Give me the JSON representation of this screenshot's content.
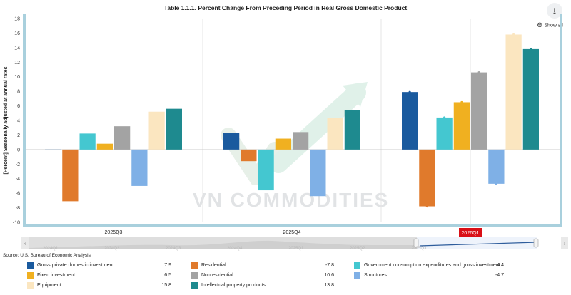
{
  "header": {
    "title": "Table 1.1.1. Percent Change From Preceding Period in Real Gross Domestic Product",
    "show_all_label": "Show all",
    "download_icon": "download-icon"
  },
  "watermark": {
    "text": "VN COMMODITIES"
  },
  "source": "Source: U.S. Bureau of Economic Analysis",
  "navigator": {
    "labels": [
      "2024Q1",
      "2024Q2",
      "2024Q3",
      "2024Q4",
      "2025Q1",
      "2025Q2",
      "2025Q3"
    ],
    "selected_label": "2026Q1"
  },
  "colors": {
    "gross_private": "#1a5a9e",
    "residential": "#e07a2c",
    "gov": "#44c7d0",
    "fixed": "#f0b020",
    "nonresidential": "#a3a3a3",
    "structures": "#7fb0e6",
    "equipment": "#fbe6c0",
    "ipp": "#1e8a8f",
    "axis_bar": "#a9d0dd",
    "selected": "#d90f16"
  },
  "chart_data": {
    "type": "bar",
    "title": "Table 1.1.1. Percent Change From Preceding Period in Real Gross Domestic Product",
    "ylabel": "[Percent] Seasonally adjusted at annual rates",
    "xlabel": "",
    "ylim": [
      -10,
      18
    ],
    "yticks": [
      -10,
      -8,
      -6,
      -4,
      -2,
      0,
      2,
      4,
      6,
      8,
      10,
      12,
      14,
      16,
      18
    ],
    "grid": false,
    "categories": [
      "2025Q3",
      "2025Q4",
      "2026Q1"
    ],
    "series": [
      {
        "name": "Gross private domestic investment",
        "values": [
          0.0,
          2.3,
          7.9
        ]
      },
      {
        "name": "Residential",
        "values": [
          -7.1,
          -1.6,
          -7.8
        ]
      },
      {
        "name": "Government consumption expenditures and gross investment",
        "values": [
          2.2,
          -5.6,
          4.4
        ]
      },
      {
        "name": "Fixed investment",
        "values": [
          0.8,
          1.5,
          6.5
        ]
      },
      {
        "name": "Nonresidential",
        "values": [
          3.2,
          2.4,
          10.6
        ]
      },
      {
        "name": "Structures",
        "values": [
          -5.0,
          -6.4,
          -4.7
        ]
      },
      {
        "name": "Equipment",
        "values": [
          5.2,
          4.3,
          15.8
        ]
      },
      {
        "name": "Intellectual property products",
        "values": [
          5.6,
          5.4,
          13.8
        ]
      }
    ],
    "legend": [
      {
        "name": "Gross private domestic investment",
        "value": "7.9"
      },
      {
        "name": "Residential",
        "value": "-7.8"
      },
      {
        "name": "Government consumption expenditures and gross investment",
        "value": "4.4"
      },
      {
        "name": "Fixed investment",
        "value": "6.5"
      },
      {
        "name": "Nonresidential",
        "value": "10.6"
      },
      {
        "name": "Structures",
        "value": "-4.7"
      },
      {
        "name": "Equipment",
        "value": "15.8"
      },
      {
        "name": "Intellectual property products",
        "value": "13.8"
      }
    ],
    "legend_position": "bottom"
  }
}
